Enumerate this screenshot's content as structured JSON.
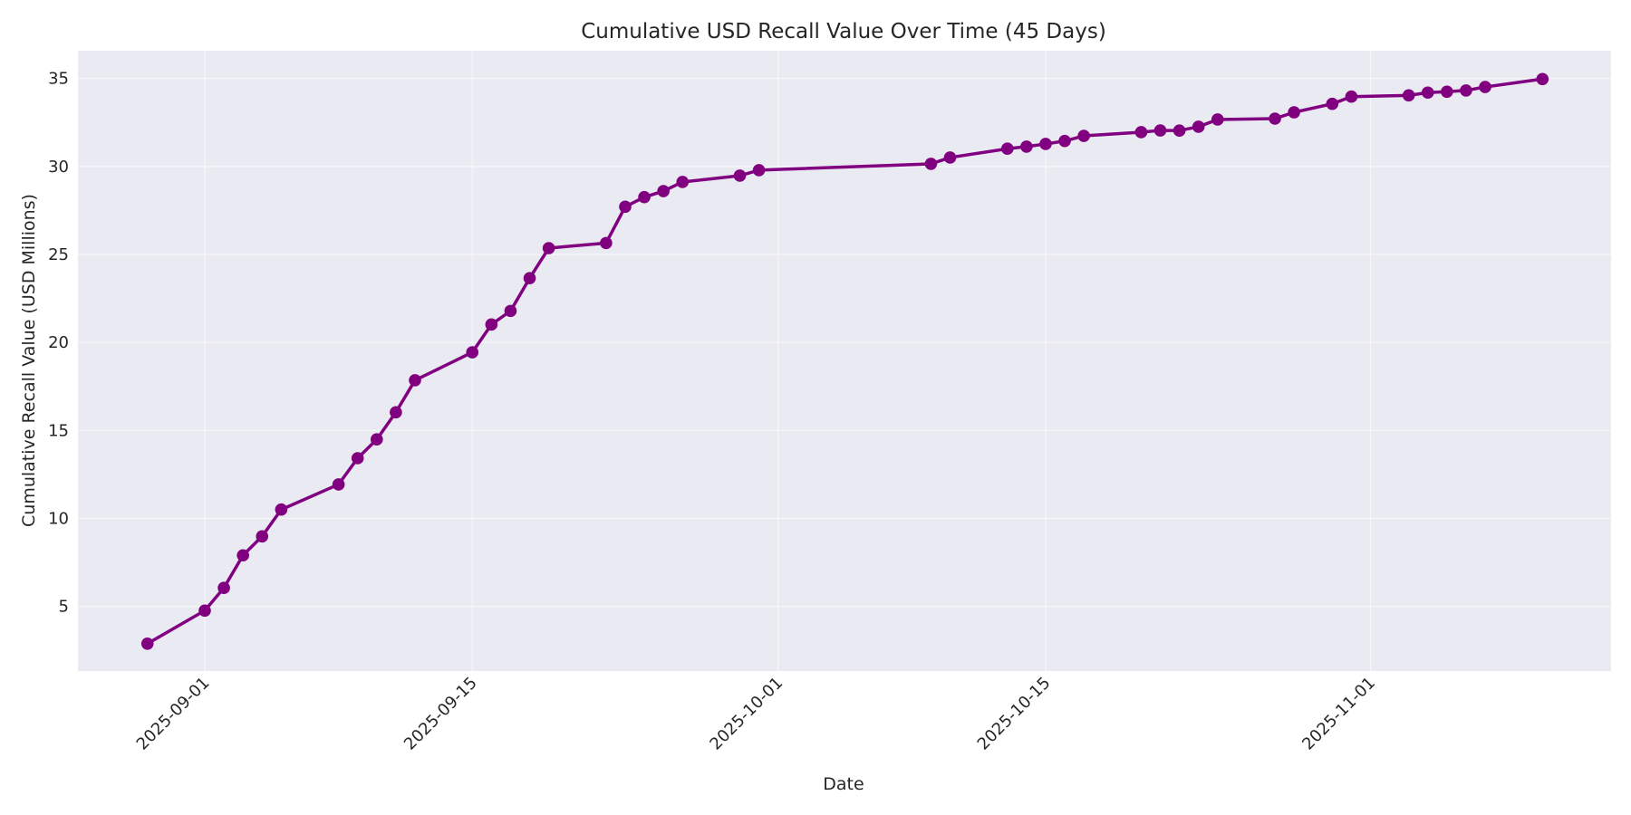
{
  "chart_data": {
    "type": "line",
    "title": "Cumulative USD Recall Value Over Time (45 Days)",
    "xlabel": "Date",
    "ylabel": "Cumulative Recall Value (USD Millions)",
    "x_tick_labels": [
      "2025-09-01",
      "2025-09-15",
      "2025-10-01",
      "2025-10-15",
      "2025-11-01"
    ],
    "y_tick_labels": [
      "5",
      "10",
      "15",
      "20",
      "25",
      "30",
      "35"
    ],
    "y_ticks": [
      5,
      10,
      15,
      20,
      25,
      30,
      35
    ],
    "ylim": [
      1.3,
      36.6
    ],
    "xlim": [
      "2025-08-25",
      "2025-11-13"
    ],
    "grid": true,
    "legend": null,
    "colors": {
      "line": "#800080",
      "plot_bg": "#EAEAF2",
      "grid": "#ffffff",
      "page_bg": "#ffffff"
    },
    "series": [
      {
        "name": "Cumulative Recall Value",
        "marker": "circle",
        "x": [
          "2025-08-29",
          "2025-09-01",
          "2025-09-02",
          "2025-09-03",
          "2025-09-04",
          "2025-09-05",
          "2025-09-08",
          "2025-09-09",
          "2025-09-10",
          "2025-09-11",
          "2025-09-12",
          "2025-09-15",
          "2025-09-16",
          "2025-09-17",
          "2025-09-18",
          "2025-09-19",
          "2025-09-22",
          "2025-09-23",
          "2025-09-24",
          "2025-09-25",
          "2025-09-26",
          "2025-09-29",
          "2025-09-30",
          "2025-10-09",
          "2025-10-10",
          "2025-10-13",
          "2025-10-14",
          "2025-10-15",
          "2025-10-16",
          "2025-10-17",
          "2025-10-20",
          "2025-10-21",
          "2025-10-22",
          "2025-10-23",
          "2025-10-24",
          "2025-10-27",
          "2025-10-28",
          "2025-10-30",
          "2025-10-31",
          "2025-11-03",
          "2025-11-04",
          "2025-11-05",
          "2025-11-06",
          "2025-11-07",
          "2025-11-10"
        ],
        "values": [
          2.88,
          4.76,
          6.05,
          7.9,
          8.98,
          10.5,
          11.93,
          13.42,
          14.49,
          16.03,
          17.85,
          19.44,
          21.02,
          21.79,
          23.65,
          25.36,
          25.65,
          27.71,
          28.26,
          28.6,
          29.12,
          29.48,
          29.79,
          30.15,
          30.51,
          31.01,
          31.13,
          31.28,
          31.45,
          31.74,
          31.95,
          32.05,
          32.04,
          32.26,
          32.67,
          32.72,
          33.08,
          33.56,
          33.97,
          34.04,
          34.2,
          34.25,
          34.32,
          34.52,
          34.97
        ]
      }
    ]
  }
}
